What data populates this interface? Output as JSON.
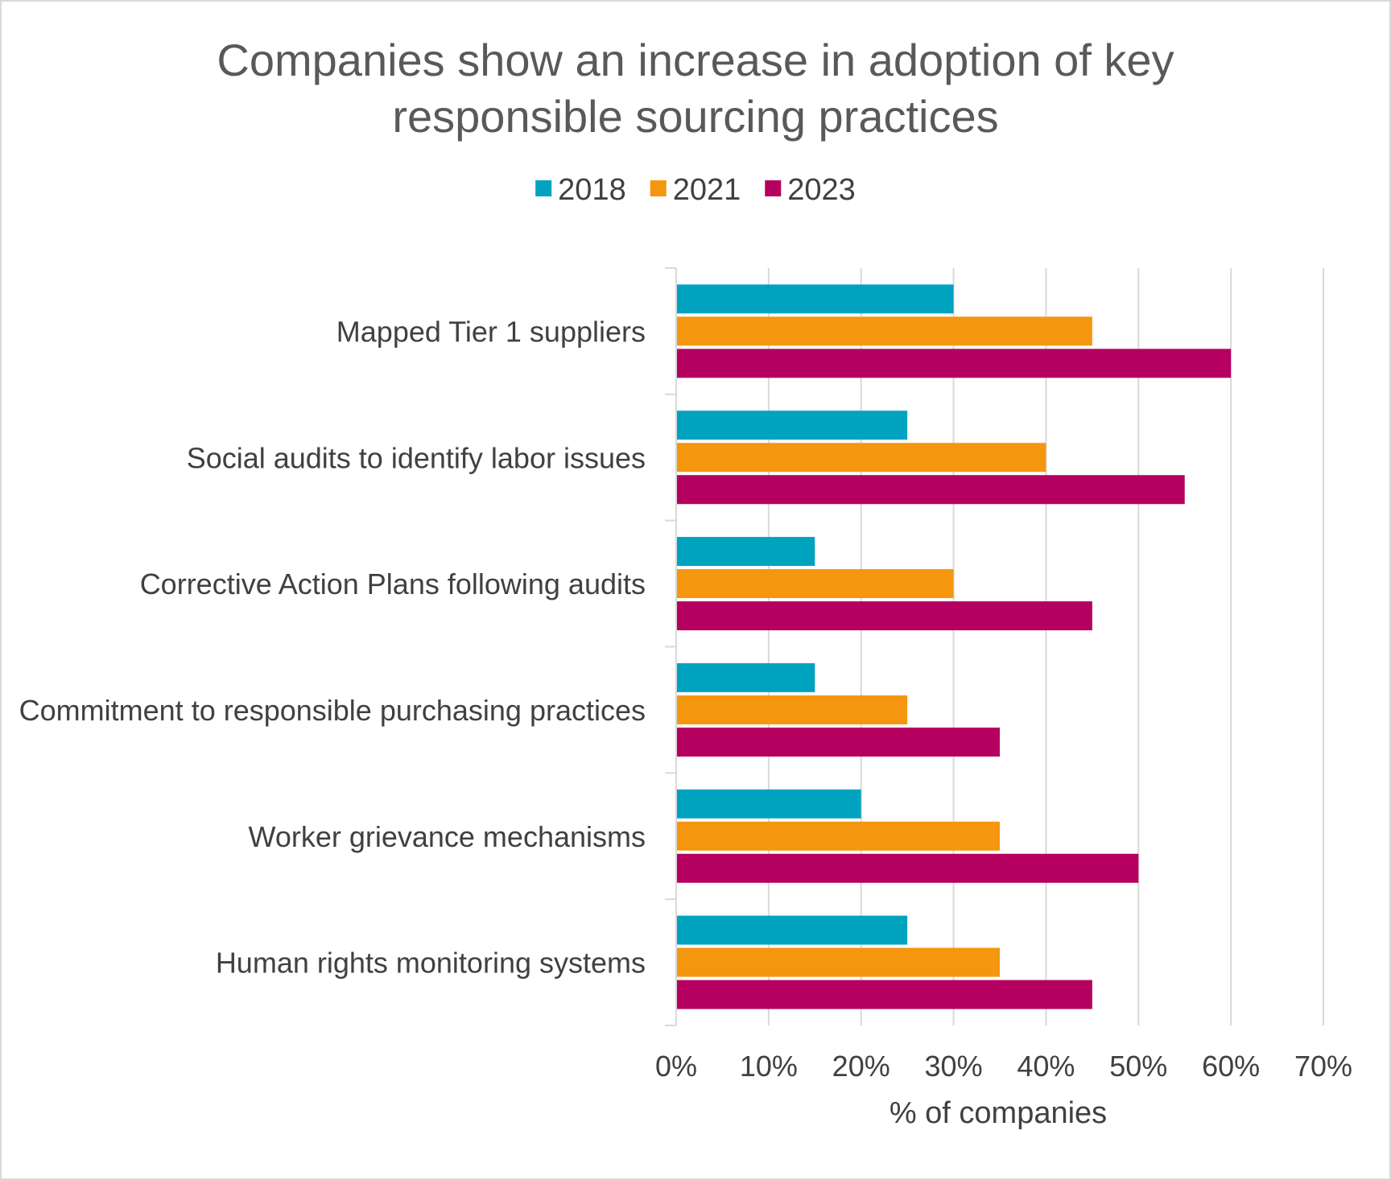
{
  "chart_data": {
    "type": "bar",
    "orientation": "horizontal",
    "title_lines": [
      "Companies show an increase in adoption of key",
      "responsible sourcing practices"
    ],
    "categories": [
      "Mapped Tier 1 suppliers",
      "Social audits to identify labor issues",
      "Corrective Action Plans following audits",
      "Commitment to responsible purchasing practices",
      "Worker grievance mechanisms",
      "Human rights monitoring systems"
    ],
    "series": [
      {
        "name": "2018",
        "color": "#00A3BF",
        "values": [
          30,
          25,
          15,
          15,
          20,
          25
        ]
      },
      {
        "name": "2021",
        "color": "#F5960F",
        "values": [
          45,
          40,
          30,
          25,
          35,
          35
        ]
      },
      {
        "name": "2023",
        "color": "#B5005F",
        "values": [
          60,
          55,
          45,
          35,
          50,
          45
        ]
      }
    ],
    "xlabel": "% of companies",
    "ylabel": "",
    "xlim": [
      0,
      70
    ],
    "xticks": [
      "0%",
      "10%",
      "20%",
      "30%",
      "40%",
      "50%",
      "60%",
      "70%"
    ],
    "grid": "vertical",
    "legend_position": "top-center"
  }
}
